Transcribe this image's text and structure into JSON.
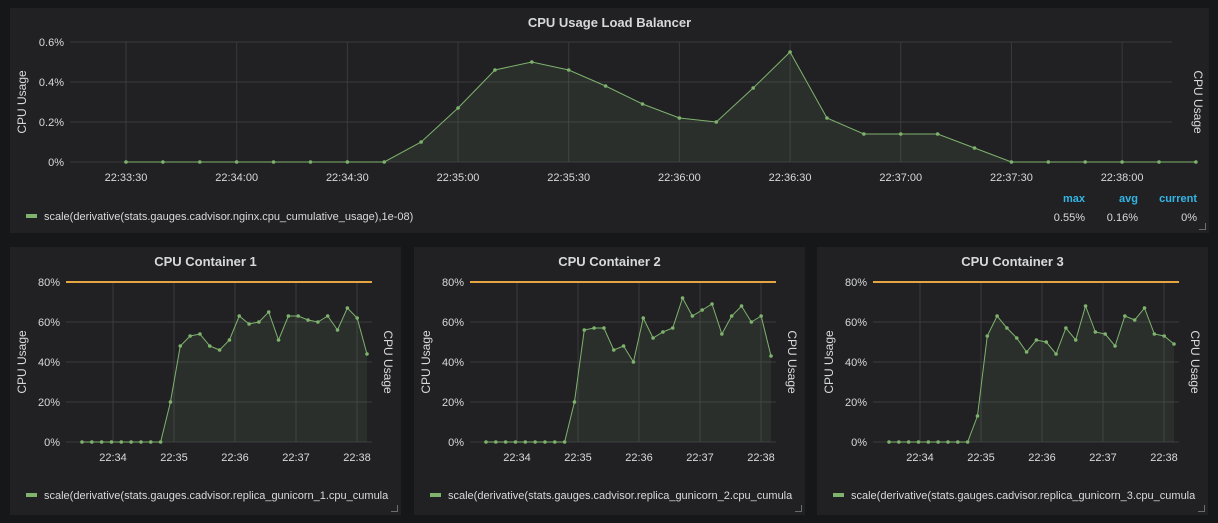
{
  "colors": {
    "background": "#161719",
    "panel": "#212124",
    "series": "#7eb26d",
    "threshold": "#e5a540",
    "legend_header": "#33b5e5"
  },
  "main_panel": {
    "title": "CPU Usage Load Balancer",
    "ylabel_left": "CPU Usage",
    "ylabel_right": "CPU Usage",
    "legend": {
      "series": "scale(derivative(stats.gauges.cadvisor.nginx.cpu_cumulative_usage),1e-08)",
      "headers": {
        "max": "max",
        "avg": "avg",
        "current": "current"
      },
      "values": {
        "max": "0.55%",
        "avg": "0.16%",
        "current": "0%"
      }
    },
    "chart_data": {
      "type": "area",
      "x_ticks": [
        "22:33:30",
        "22:34:00",
        "22:34:30",
        "22:35:00",
        "22:35:30",
        "22:36:00",
        "22:36:30",
        "22:37:00",
        "22:37:30",
        "22:38:00"
      ],
      "y_ticks": [
        "0%",
        "0.2%",
        "0.4%",
        "0.6%"
      ],
      "ylim": [
        0,
        0.6
      ],
      "xlim_seconds": [
        0,
        300
      ],
      "x": [
        30,
        40,
        50,
        60,
        70,
        80,
        90,
        100,
        110,
        120,
        130,
        140,
        150,
        160,
        170,
        180,
        190,
        200,
        210,
        220,
        230,
        240,
        250,
        260,
        270,
        280,
        290,
        300,
        310,
        320
      ],
      "values": [
        0,
        0,
        0,
        0,
        0,
        0,
        0,
        0,
        0.1,
        0.27,
        0.46,
        0.5,
        0.46,
        0.38,
        0.29,
        0.22,
        0.2,
        0.37,
        0.55,
        0.22,
        0.14,
        0.14,
        0.14,
        0.07,
        0,
        0,
        0,
        0,
        0,
        0
      ],
      "series_name": "scale(derivative(stats.gauges.cadvisor.nginx.cpu_cumulative_usage),1e-08)"
    }
  },
  "containers": [
    {
      "title": "CPU Container 1",
      "ylabel_left": "CPU Usage",
      "ylabel_right": "CPU Usage",
      "legend": "scale(derivative(stats.gauges.cadvisor.replica_gunicorn_1.cpu_cumula",
      "chart_data": {
        "type": "area",
        "x_ticks": [
          "22:34",
          "22:35",
          "22:36",
          "22:37",
          "22:38"
        ],
        "y_ticks": [
          "0%",
          "20%",
          "40%",
          "60%",
          "80%"
        ],
        "ylim": [
          0,
          80
        ],
        "threshold": 80,
        "values": [
          0,
          0,
          0,
          0,
          0,
          0,
          0,
          0,
          0,
          20,
          48,
          53,
          54,
          48,
          46,
          51,
          63,
          59,
          60,
          65,
          51,
          63,
          63,
          61,
          60,
          63,
          56,
          67,
          62,
          44
        ]
      }
    },
    {
      "title": "CPU Container 2",
      "ylabel_left": "CPU Usage",
      "ylabel_right": "CPU Usage",
      "legend": "scale(derivative(stats.gauges.cadvisor.replica_gunicorn_2.cpu_cumula",
      "chart_data": {
        "type": "area",
        "x_ticks": [
          "22:34",
          "22:35",
          "22:36",
          "22:37",
          "22:38"
        ],
        "y_ticks": [
          "0%",
          "20%",
          "40%",
          "60%",
          "80%"
        ],
        "ylim": [
          0,
          80
        ],
        "threshold": 80,
        "values": [
          0,
          0,
          0,
          0,
          0,
          0,
          0,
          0,
          0,
          20,
          56,
          57,
          57,
          46,
          48,
          40,
          62,
          52,
          55,
          57,
          72,
          63,
          66,
          69,
          54,
          63,
          68,
          60,
          63,
          43
        ]
      }
    },
    {
      "title": "CPU Container 3",
      "ylabel_left": "CPU Usage",
      "ylabel_right": "CPU Usage",
      "legend": "scale(derivative(stats.gauges.cadvisor.replica_gunicorn_3.cpu_cumula",
      "chart_data": {
        "type": "area",
        "x_ticks": [
          "22:34",
          "22:35",
          "22:36",
          "22:37",
          "22:38"
        ],
        "y_ticks": [
          "0%",
          "20%",
          "40%",
          "60%",
          "80%"
        ],
        "ylim": [
          0,
          80
        ],
        "threshold": 80,
        "values": [
          0,
          0,
          0,
          0,
          0,
          0,
          0,
          0,
          0,
          13,
          53,
          63,
          57,
          52,
          45,
          51,
          50,
          44,
          57,
          51,
          68,
          55,
          54,
          48,
          63,
          61,
          67,
          54,
          53,
          49
        ]
      }
    }
  ]
}
